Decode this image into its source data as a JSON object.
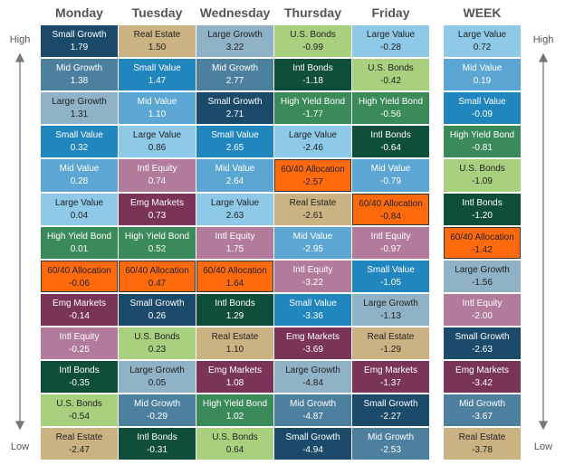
{
  "axis": {
    "high": "High",
    "low": "Low"
  },
  "columns": [
    {
      "header": "Monday",
      "cells": [
        [
          "Small Growth",
          "1.79",
          "#1b4a6b"
        ],
        [
          "Mid Growth",
          "1.38",
          "#4d7f9f"
        ],
        [
          "Large Growth",
          "1.31",
          "#8fb2c7"
        ],
        [
          "Small Value",
          "0.32",
          "#2185be"
        ],
        [
          "Mid Value",
          "0.28",
          "#5ba6d3"
        ],
        [
          "Large Value",
          "0.04",
          "#8ecae8"
        ],
        [
          "High Yield Bond",
          "0.01",
          "#3b8a5a"
        ],
        [
          "60/40 Allocation",
          "-0.06",
          "#ff6a0d"
        ],
        [
          "Emg Markets",
          "-0.14",
          "#7a3458"
        ],
        [
          "Intl Equity",
          "-0.25",
          "#b27b9b"
        ],
        [
          "Intl Bonds",
          "-0.35",
          "#0f4e3b"
        ],
        [
          "U.S. Bonds",
          "-0.54",
          "#a8d07e"
        ],
        [
          "Real Estate",
          "-2.47",
          "#cbb283"
        ]
      ]
    },
    {
      "header": "Tuesday",
      "cells": [
        [
          "Real Estate",
          "1.50",
          "#cbb283"
        ],
        [
          "Small Value",
          "1.47",
          "#2185be"
        ],
        [
          "Mid Value",
          "1.10",
          "#5ba6d3"
        ],
        [
          "Large Value",
          "0.86",
          "#8ecae8"
        ],
        [
          "Intl Equity",
          "0.74",
          "#b27b9b"
        ],
        [
          "Emg Markets",
          "0.73",
          "#7a3458"
        ],
        [
          "High Yield Bond",
          "0.52",
          "#3b8a5a"
        ],
        [
          "60/40 Allocation",
          "0.47",
          "#ff6a0d"
        ],
        [
          "Small Growth",
          "0.26",
          "#1b4a6b"
        ],
        [
          "U.S. Bonds",
          "0.23",
          "#a8d07e"
        ],
        [
          "Large Growth",
          "0.05",
          "#8fb2c7"
        ],
        [
          "Mid Growth",
          "-0.29",
          "#4d7f9f"
        ],
        [
          "Intl Bonds",
          "-0.31",
          "#0f4e3b"
        ]
      ]
    },
    {
      "header": "Wednesday",
      "cells": [
        [
          "Large Growth",
          "3.22",
          "#8fb2c7"
        ],
        [
          "Mid Growth",
          "2.77",
          "#4d7f9f"
        ],
        [
          "Small Growth",
          "2.71",
          "#1b4a6b"
        ],
        [
          "Small Value",
          "2.65",
          "#2185be"
        ],
        [
          "Mid Value",
          "2.64",
          "#5ba6d3"
        ],
        [
          "Large Value",
          "2.63",
          "#8ecae8"
        ],
        [
          "Intl Equity",
          "1.75",
          "#b27b9b"
        ],
        [
          "60/40 Allocation",
          "1.64",
          "#ff6a0d"
        ],
        [
          "Intl Bonds",
          "1.29",
          "#0f4e3b"
        ],
        [
          "Real Estate",
          "1.10",
          "#cbb283"
        ],
        [
          "Emg Markets",
          "1.08",
          "#7a3458"
        ],
        [
          "High Yield Bond",
          "1.02",
          "#3b8a5a"
        ],
        [
          "U.S. Bonds",
          "0.64",
          "#a8d07e"
        ]
      ]
    },
    {
      "header": "Thursday",
      "cells": [
        [
          "U.S. Bonds",
          "-0.99",
          "#a8d07e"
        ],
        [
          "Intl Bonds",
          "-1.18",
          "#0f4e3b"
        ],
        [
          "High Yield Bond",
          "-1.77",
          "#3b8a5a"
        ],
        [
          "Large Value",
          "-2.46",
          "#8ecae8"
        ],
        [
          "60/40 Allocation",
          "-2.57",
          "#ff6a0d"
        ],
        [
          "Real Estate",
          "-2.61",
          "#cbb283"
        ],
        [
          "Mid Value",
          "-2.95",
          "#5ba6d3"
        ],
        [
          "Intl Equity",
          "-3.22",
          "#b27b9b"
        ],
        [
          "Small Value",
          "-3.36",
          "#2185be"
        ],
        [
          "Emg Markets",
          "-3.69",
          "#7a3458"
        ],
        [
          "Large Growth",
          "-4.84",
          "#8fb2c7"
        ],
        [
          "Mid Growth",
          "-4.87",
          "#4d7f9f"
        ],
        [
          "Small Growth",
          "-4.94",
          "#1b4a6b"
        ]
      ]
    },
    {
      "header": "Friday",
      "cells": [
        [
          "Large Value",
          "-0.28",
          "#8ecae8"
        ],
        [
          "U.S. Bonds",
          "-0.42",
          "#a8d07e"
        ],
        [
          "High Yield Bond",
          "-0.56",
          "#3b8a5a"
        ],
        [
          "Intl Bonds",
          "-0.64",
          "#0f4e3b"
        ],
        [
          "Mid Value",
          "-0.79",
          "#5ba6d3"
        ],
        [
          "60/40 Allocation",
          "-0.84",
          "#ff6a0d"
        ],
        [
          "Intl Equity",
          "-0.97",
          "#b27b9b"
        ],
        [
          "Small Value",
          "-1.05",
          "#2185be"
        ],
        [
          "Large Growth",
          "-1.13",
          "#8fb2c7"
        ],
        [
          "Real Estate",
          "-1.29",
          "#cbb283"
        ],
        [
          "Emg Markets",
          "-1.37",
          "#7a3458"
        ],
        [
          "Small Growth",
          "-2.27",
          "#1b4a6b"
        ],
        [
          "Mid Growth",
          "-2.53",
          "#4d7f9f"
        ]
      ]
    },
    {
      "header": "WEEK",
      "cells": [
        [
          "Large Value",
          "0.72",
          "#8ecae8"
        ],
        [
          "Mid Value",
          "0.19",
          "#5ba6d3"
        ],
        [
          "Small Value",
          "-0.09",
          "#2185be"
        ],
        [
          "High Yield Bond",
          "-0.81",
          "#3b8a5a"
        ],
        [
          "U.S. Bonds",
          "-1.09",
          "#a8d07e"
        ],
        [
          "Intl Bonds",
          "-1.20",
          "#0f4e3b"
        ],
        [
          "60/40 Allocation",
          "-1.42",
          "#ff6a0d"
        ],
        [
          "Large Growth",
          "-1.56",
          "#8fb2c7"
        ],
        [
          "Intl Equity",
          "-2.00",
          "#b27b9b"
        ],
        [
          "Small Growth",
          "-2.63",
          "#1b4a6b"
        ],
        [
          "Emg Markets",
          "-3.42",
          "#7a3458"
        ],
        [
          "Mid Growth",
          "-3.67",
          "#4d7f9f"
        ],
        [
          "Real Estate",
          "-3.78",
          "#cbb283"
        ]
      ]
    }
  ]
}
